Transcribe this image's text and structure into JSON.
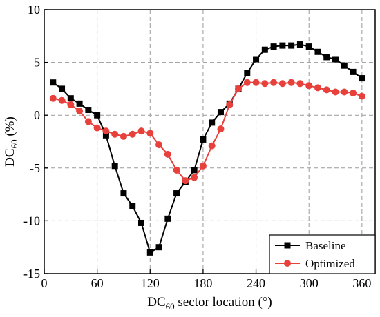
{
  "chart_data": {
    "type": "line",
    "xlabel_main": "DC",
    "xlabel_sub": "60",
    "xlabel_rest": " sector location (°)",
    "ylabel_main": "DC",
    "ylabel_sub": "60",
    "ylabel_rest": " (%)",
    "xlim": [
      0,
      375
    ],
    "ylim": [
      -15,
      10
    ],
    "xticks": [
      0,
      60,
      120,
      180,
      240,
      300,
      360
    ],
    "yticks": [
      -15,
      -10,
      -5,
      0,
      5,
      10
    ],
    "grid": true,
    "legend_position": "bottom-right",
    "x": [
      10,
      20,
      30,
      40,
      50,
      60,
      70,
      80,
      90,
      100,
      110,
      120,
      130,
      140,
      150,
      160,
      170,
      180,
      190,
      200,
      210,
      220,
      230,
      240,
      250,
      260,
      270,
      280,
      290,
      300,
      310,
      320,
      330,
      340,
      350,
      360
    ],
    "series": [
      {
        "name": "Baseline",
        "color": "#000000",
        "marker": "square",
        "values": [
          3.1,
          2.5,
          1.6,
          1.1,
          0.5,
          0.0,
          -1.9,
          -4.8,
          -7.4,
          -8.6,
          -10.2,
          -13.0,
          -12.5,
          -9.8,
          -7.4,
          -6.3,
          -5.2,
          -2.3,
          -0.7,
          0.3,
          1.1,
          2.5,
          4.0,
          5.3,
          6.2,
          6.5,
          6.6,
          6.6,
          6.7,
          6.5,
          6.0,
          5.5,
          5.3,
          4.7,
          4.1,
          3.5
        ]
      },
      {
        "name": "Optimized",
        "color": "#e8413c",
        "marker": "circle",
        "values": [
          1.6,
          1.4,
          1.0,
          0.4,
          -0.6,
          -1.2,
          -1.5,
          -1.8,
          -2.0,
          -1.8,
          -1.5,
          -1.7,
          -2.8,
          -3.7,
          -5.2,
          -6.2,
          -5.9,
          -4.8,
          -2.9,
          -1.3,
          1.0,
          2.5,
          3.1,
          3.1,
          3.0,
          3.1,
          3.0,
          3.1,
          3.0,
          2.8,
          2.6,
          2.4,
          2.2,
          2.2,
          2.1,
          1.8
        ]
      }
    ]
  }
}
